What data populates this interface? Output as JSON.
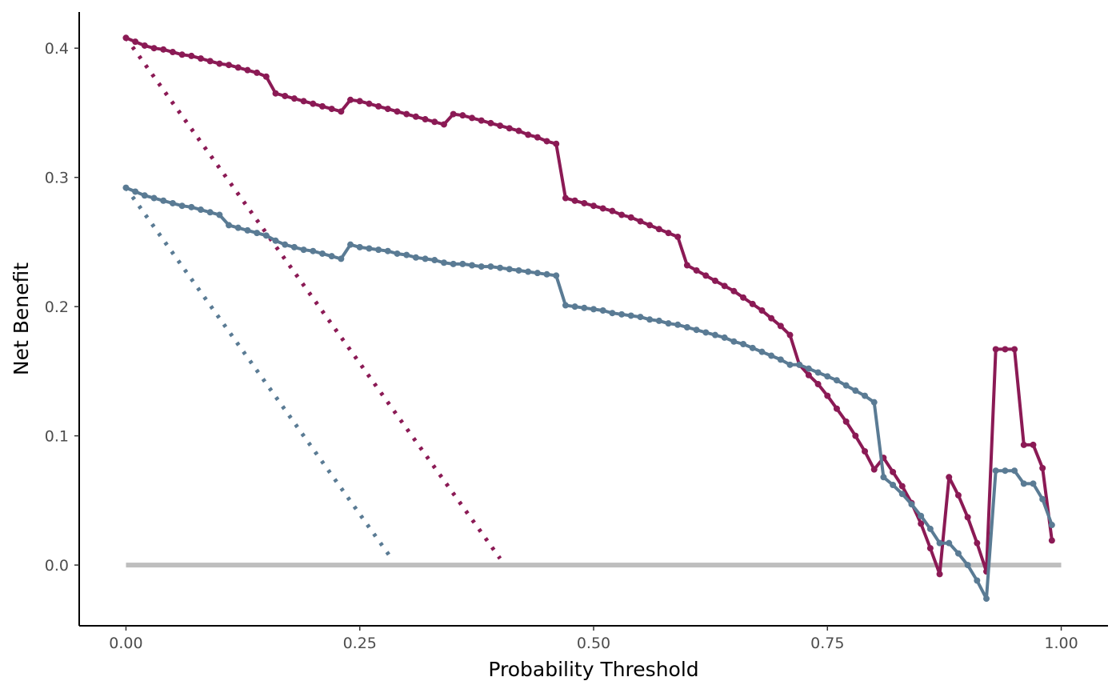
{
  "chart_data": {
    "type": "line",
    "title": "",
    "xlabel": "Probability Threshold",
    "ylabel": "Net Benefit",
    "xlim": [
      -0.05,
      1.05
    ],
    "ylim": [
      -0.047,
      0.428
    ],
    "x_ticks": [
      0.0,
      0.25,
      0.5,
      0.75,
      1.0
    ],
    "x_tick_labels": [
      "0.00",
      "0.25",
      "0.50",
      "0.75",
      "1.00"
    ],
    "y_ticks": [
      0.0,
      0.1,
      0.2,
      0.3,
      0.4
    ],
    "y_tick_labels": [
      "0.0",
      "0.1",
      "0.2",
      "0.3",
      "0.4"
    ],
    "grid": false,
    "legend": "none",
    "series": [
      {
        "style": "solid-points",
        "color": "#8b1a55",
        "x": [
          0.0,
          0.01,
          0.02,
          0.03,
          0.04,
          0.05,
          0.06,
          0.07,
          0.08,
          0.09,
          0.1,
          0.11,
          0.12,
          0.13,
          0.14,
          0.15,
          0.16,
          0.17,
          0.18,
          0.19,
          0.2,
          0.21,
          0.22,
          0.23,
          0.24,
          0.25,
          0.26,
          0.27,
          0.28,
          0.29,
          0.3,
          0.31,
          0.32,
          0.33,
          0.34,
          0.35,
          0.36,
          0.37,
          0.38,
          0.39,
          0.4,
          0.41,
          0.42,
          0.43,
          0.44,
          0.45,
          0.46,
          0.47,
          0.48,
          0.49,
          0.5,
          0.51,
          0.52,
          0.53,
          0.54,
          0.55,
          0.56,
          0.57,
          0.58,
          0.59,
          0.6,
          0.61,
          0.62,
          0.63,
          0.64,
          0.65,
          0.66,
          0.67,
          0.68,
          0.69,
          0.7,
          0.71,
          0.72,
          0.73,
          0.74,
          0.75,
          0.76,
          0.77,
          0.78,
          0.79,
          0.8,
          0.81,
          0.82,
          0.83,
          0.84,
          0.85,
          0.86,
          0.87,
          0.88,
          0.89,
          0.9,
          0.91,
          0.92,
          0.93,
          0.94,
          0.95,
          0.96,
          0.97,
          0.98,
          0.99
        ],
        "y": [
          0.408,
          0.405,
          0.402,
          0.4,
          0.399,
          0.397,
          0.395,
          0.394,
          0.392,
          0.39,
          0.388,
          0.387,
          0.385,
          0.383,
          0.381,
          0.378,
          0.365,
          0.363,
          0.361,
          0.359,
          0.357,
          0.355,
          0.353,
          0.351,
          0.36,
          0.359,
          0.357,
          0.355,
          0.353,
          0.351,
          0.349,
          0.347,
          0.345,
          0.343,
          0.341,
          0.349,
          0.348,
          0.346,
          0.344,
          0.342,
          0.34,
          0.338,
          0.336,
          0.333,
          0.331,
          0.328,
          0.326,
          0.284,
          0.282,
          0.28,
          0.278,
          0.276,
          0.274,
          0.271,
          0.269,
          0.266,
          0.263,
          0.26,
          0.257,
          0.254,
          0.232,
          0.228,
          0.224,
          0.22,
          0.216,
          0.212,
          0.207,
          0.202,
          0.197,
          0.191,
          0.185,
          0.178,
          0.155,
          0.147,
          0.14,
          0.131,
          0.121,
          0.111,
          0.1,
          0.088,
          0.074,
          0.083,
          0.072,
          0.061,
          0.048,
          0.032,
          0.013,
          -0.007,
          0.068,
          0.054,
          0.037,
          0.017,
          -0.005,
          0.167,
          0.167,
          0.167,
          0.093,
          0.093,
          0.075,
          0.019
        ]
      },
      {
        "style": "solid-points",
        "color": "#5a7b94",
        "x": [
          0.0,
          0.01,
          0.02,
          0.03,
          0.04,
          0.05,
          0.06,
          0.07,
          0.08,
          0.09,
          0.1,
          0.11,
          0.12,
          0.13,
          0.14,
          0.15,
          0.16,
          0.17,
          0.18,
          0.19,
          0.2,
          0.21,
          0.22,
          0.23,
          0.24,
          0.25,
          0.26,
          0.27,
          0.28,
          0.29,
          0.3,
          0.31,
          0.32,
          0.33,
          0.34,
          0.35,
          0.36,
          0.37,
          0.38,
          0.39,
          0.4,
          0.41,
          0.42,
          0.43,
          0.44,
          0.45,
          0.46,
          0.47,
          0.48,
          0.49,
          0.5,
          0.51,
          0.52,
          0.53,
          0.54,
          0.55,
          0.56,
          0.57,
          0.58,
          0.59,
          0.6,
          0.61,
          0.62,
          0.63,
          0.64,
          0.65,
          0.66,
          0.67,
          0.68,
          0.69,
          0.7,
          0.71,
          0.72,
          0.73,
          0.74,
          0.75,
          0.76,
          0.77,
          0.78,
          0.79,
          0.8,
          0.81,
          0.82,
          0.83,
          0.84,
          0.85,
          0.86,
          0.87,
          0.88,
          0.89,
          0.9,
          0.91,
          0.92,
          0.93,
          0.94,
          0.95,
          0.96,
          0.97,
          0.98,
          0.99
        ],
        "y": [
          0.292,
          0.289,
          0.286,
          0.284,
          0.282,
          0.28,
          0.278,
          0.277,
          0.275,
          0.273,
          0.271,
          0.263,
          0.261,
          0.259,
          0.257,
          0.255,
          0.251,
          0.248,
          0.246,
          0.244,
          0.243,
          0.241,
          0.239,
          0.237,
          0.248,
          0.246,
          0.245,
          0.244,
          0.243,
          0.241,
          0.24,
          0.238,
          0.237,
          0.236,
          0.234,
          0.233,
          0.233,
          0.232,
          0.231,
          0.231,
          0.23,
          0.229,
          0.228,
          0.227,
          0.226,
          0.225,
          0.224,
          0.201,
          0.2,
          0.199,
          0.198,
          0.197,
          0.195,
          0.194,
          0.193,
          0.192,
          0.19,
          0.189,
          0.187,
          0.186,
          0.184,
          0.182,
          0.18,
          0.178,
          0.176,
          0.173,
          0.171,
          0.168,
          0.165,
          0.162,
          0.159,
          0.155,
          0.155,
          0.152,
          0.149,
          0.146,
          0.143,
          0.139,
          0.135,
          0.131,
          0.126,
          0.068,
          0.062,
          0.055,
          0.047,
          0.038,
          0.028,
          0.017,
          0.017,
          0.009,
          0.0,
          -0.012,
          -0.026,
          0.073,
          0.073,
          0.073,
          0.063,
          0.063,
          0.051,
          0.031
        ]
      },
      {
        "style": "dotted",
        "color": "#8b1a55",
        "x": [
          0.0,
          0.4
        ],
        "y": [
          0.408,
          0.005
        ]
      },
      {
        "style": "dotted",
        "color": "#5a7b94",
        "x": [
          0.0,
          0.285
        ],
        "y": [
          0.292,
          0.004
        ]
      },
      {
        "style": "reference",
        "color": "#bebebe",
        "x": [
          0.0,
          1.0
        ],
        "y": [
          0.0,
          0.0
        ]
      }
    ]
  }
}
